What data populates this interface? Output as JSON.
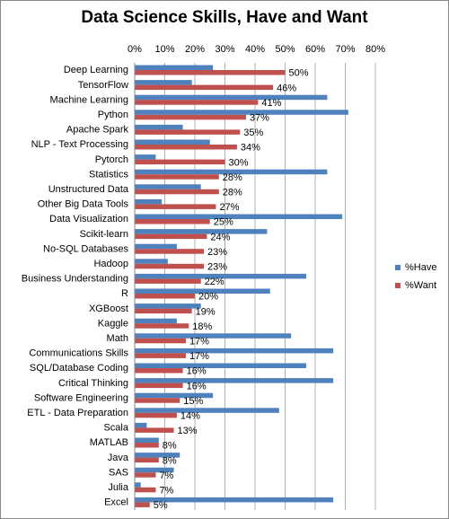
{
  "chart_data": {
    "type": "bar",
    "orientation": "horizontal",
    "title": "Data Science Skills, Have and Want",
    "categories": [
      "Deep Learning",
      "TensorFlow",
      "Machine Learning",
      "Python",
      "Apache Spark",
      "NLP - Text Processing",
      "Pytorch",
      "Statistics",
      "Unstructured Data",
      "Other Big Data Tools",
      "Data Visualization",
      "Scikit-learn",
      "No-SQL Databases",
      "Hadoop",
      "Business Understanding",
      "R",
      "XGBoost",
      "Kaggle",
      "Math",
      "Communications Skills",
      "SQL/Database Coding",
      "Critical Thinking",
      "Software Engineering",
      "ETL - Data Preparation",
      "Scala",
      "MATLAB",
      "Java",
      "SAS",
      "Julia",
      "Excel"
    ],
    "series": [
      {
        "name": "%Have",
        "color": "#4f81bd",
        "values": [
          26,
          19,
          64,
          71,
          16,
          25,
          7,
          64,
          22,
          9,
          69,
          44,
          14,
          11,
          57,
          45,
          22,
          14,
          52,
          66,
          57,
          66,
          26,
          48,
          4,
          8,
          15,
          13,
          2,
          66
        ]
      },
      {
        "name": "%Want",
        "color": "#c0504d",
        "values": [
          50,
          46,
          41,
          37,
          35,
          34,
          30,
          28,
          28,
          27,
          25,
          24,
          23,
          23,
          22,
          20,
          19,
          18,
          17,
          17,
          16,
          16,
          15,
          14,
          13,
          8,
          8,
          7,
          7,
          5
        ],
        "value_labels": [
          "50%",
          "46%",
          "41%",
          "37%",
          "35%",
          "34%",
          "30%",
          "28%",
          "28%",
          "27%",
          "25%",
          "24%",
          "23%",
          "23%",
          "22%",
          "20%",
          "19%",
          "18%",
          "17%",
          "17%",
          "16%",
          "16%",
          "15%",
          "14%",
          "13%",
          "8%",
          "8%",
          "7%",
          "7%",
          "5%"
        ]
      }
    ],
    "xlim": [
      0,
      80
    ],
    "xticks": [
      {
        "value": 0,
        "label": "0%"
      },
      {
        "value": 10,
        "label": "10%"
      },
      {
        "value": 20,
        "label": "20%"
      },
      {
        "value": 30,
        "label": "30%"
      },
      {
        "value": 40,
        "label": "40%"
      },
      {
        "value": 50,
        "label": "50%"
      },
      {
        "value": 60,
        "label": "60%"
      },
      {
        "value": 70,
        "label": "70%"
      },
      {
        "value": 80,
        "label": "80%"
      }
    ],
    "grid": true,
    "legend": "right"
  }
}
